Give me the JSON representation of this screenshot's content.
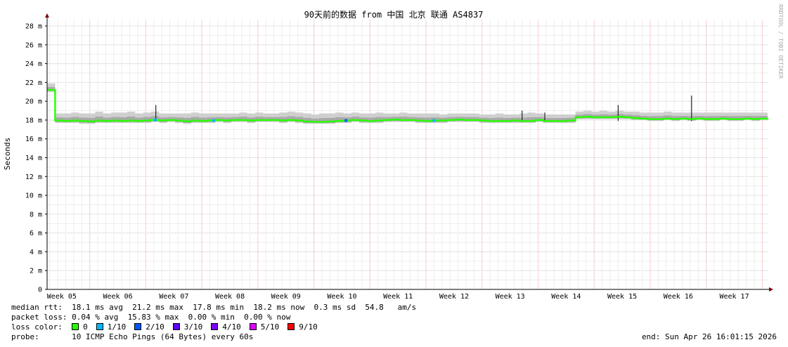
{
  "chart_data": {
    "type": "line",
    "title": "90天前的数据 from 中国 北京 联通 AS4837",
    "ylabel": "Seconds",
    "watermark": "RRDTOOL / TOBI OETIKER",
    "ylim": [
      0,
      0.028
    ],
    "yticks": [
      "0",
      "2 m",
      "4 m",
      "6 m",
      "8 m",
      "10 m",
      "12 m",
      "14 m",
      "16 m",
      "18 m",
      "20 m",
      "22 m",
      "24 m",
      "26 m",
      "28 m"
    ],
    "xticks": [
      "Week 05",
      "Week 06",
      "Week 07",
      "Week 08",
      "Week 09",
      "Week 10",
      "Week 11",
      "Week 12",
      "Week 13",
      "Week 14",
      "Week 15",
      "Week 16",
      "Week 17"
    ],
    "grid": true,
    "x_start": "2026-01-26T16:01:15",
    "x_end": "2026-04-26T16:01:15",
    "x_interval": "1 day",
    "median_ms": [
      21.2,
      17.95,
      17.9,
      17.95,
      17.9,
      17.85,
      17.95,
      17.9,
      17.95,
      17.9,
      17.95,
      17.9,
      17.95,
      18.0,
      17.95,
      18.0,
      17.95,
      17.85,
      17.95,
      17.9,
      17.95,
      18.0,
      17.95,
      18.0,
      18.0,
      17.95,
      18.0,
      18.0,
      18.0,
      17.95,
      18.0,
      17.95,
      17.85,
      17.8,
      17.8,
      17.85,
      17.9,
      17.95,
      18.0,
      17.95,
      17.9,
      17.95,
      18.0,
      18.05,
      18.0,
      18.0,
      17.95,
      17.9,
      17.95,
      17.95,
      18.0,
      18.05,
      18.0,
      18.0,
      17.95,
      17.9,
      17.9,
      17.9,
      17.95,
      17.9,
      17.9,
      18.0,
      17.9,
      17.9,
      17.9,
      17.95,
      18.3,
      18.35,
      18.3,
      18.3,
      18.3,
      18.35,
      18.3,
      18.2,
      18.15,
      18.1,
      18.1,
      18.15,
      18.1,
      18.15,
      18.1,
      18.15,
      18.1,
      18.1,
      18.15,
      18.1,
      18.1,
      18.15,
      18.1,
      18.15,
      18.2
    ],
    "smoke_upper_ms": [
      21.9,
      18.7,
      18.7,
      18.8,
      18.7,
      18.7,
      18.9,
      18.7,
      18.8,
      18.8,
      18.9,
      18.7,
      18.8,
      18.9,
      18.7,
      18.7,
      18.7,
      18.7,
      18.8,
      18.7,
      18.7,
      18.7,
      18.7,
      18.7,
      18.8,
      18.7,
      18.8,
      18.7,
      18.7,
      18.8,
      18.9,
      18.8,
      18.7,
      18.6,
      18.7,
      18.7,
      18.8,
      18.7,
      18.8,
      18.7,
      18.7,
      18.8,
      18.7,
      18.7,
      18.8,
      18.7,
      18.7,
      18.7,
      18.7,
      18.6,
      18.7,
      18.7,
      18.7,
      18.7,
      18.6,
      18.6,
      18.7,
      18.6,
      18.6,
      18.7,
      18.8,
      18.7,
      18.6,
      18.6,
      18.6,
      18.6,
      18.9,
      19.0,
      18.9,
      19.0,
      18.9,
      19.0,
      18.9,
      18.9,
      18.8,
      18.8,
      18.8,
      18.9,
      18.8,
      18.8,
      18.8,
      18.8,
      18.8,
      18.8,
      18.8,
      18.8,
      18.8,
      18.8,
      18.8,
      18.8,
      18.8
    ],
    "smoke_lower_ms": [
      21.0,
      17.7,
      17.7,
      17.7,
      17.6,
      17.6,
      17.7,
      17.7,
      17.7,
      17.7,
      17.7,
      17.7,
      17.7,
      17.8,
      17.7,
      17.8,
      17.7,
      17.6,
      17.7,
      17.7,
      17.7,
      17.8,
      17.7,
      17.8,
      17.8,
      17.7,
      17.8,
      17.8,
      17.8,
      17.7,
      17.8,
      17.7,
      17.6,
      17.6,
      17.6,
      17.6,
      17.7,
      17.7,
      17.8,
      17.7,
      17.7,
      17.7,
      17.8,
      17.8,
      17.8,
      17.8,
      17.7,
      17.7,
      17.7,
      17.7,
      17.8,
      17.8,
      17.8,
      17.8,
      17.7,
      17.7,
      17.7,
      17.7,
      17.7,
      17.7,
      17.7,
      17.8,
      17.7,
      17.7,
      17.7,
      17.7,
      18.1,
      18.1,
      18.1,
      18.1,
      18.1,
      18.1,
      18.1,
      18.0,
      18.0,
      17.9,
      17.9,
      18.0,
      17.9,
      18.0,
      17.9,
      18.0,
      17.9,
      17.9,
      18.0,
      17.9,
      17.9,
      18.0,
      17.9,
      18.0,
      18.0
    ],
    "spikes": [
      {
        "time": "2026-02-09T06:00:00",
        "max_ms": 19.6
      },
      {
        "time": "2026-03-27T00:00:00",
        "max_ms": 19.0
      },
      {
        "time": "2026-03-29T20:00:00",
        "max_ms": 18.8
      },
      {
        "time": "2026-04-08T00:00:00",
        "max_ms": 19.6
      },
      {
        "time": "2026-04-17T04:00:00",
        "max_ms": 20.6
      }
    ],
    "loss_points": [
      {
        "time": "2026-02-09T04:00:00",
        "loss": "1/10"
      },
      {
        "time": "2026-02-16T12:00:00",
        "loss": "1/10"
      },
      {
        "time": "2026-03-05T00:00:00",
        "loss": "2/10"
      },
      {
        "time": "2026-03-16T00:00:00",
        "loss": "1/10"
      }
    ]
  },
  "legend": {
    "median_rtt": "median rtt:  18.1 ms avg  21.2 ms max  17.8 ms min  18.2 ms now  0.3 ms sd  54.8   am/s",
    "packet_loss": "packet loss: 0.04 % avg  15.83 % max  0.00 % min  0.00 % now",
    "loss_color_label": "loss color:  ",
    "loss_colors": [
      {
        "label": "0",
        "color": "#26ff00"
      },
      {
        "label": "1/10",
        "color": "#00b8ff"
      },
      {
        "label": "2/10",
        "color": "#0059ff"
      },
      {
        "label": "3/10",
        "color": "#5e00ff"
      },
      {
        "label": "4/10",
        "color": "#7e00ff"
      },
      {
        "label": "5/10",
        "color": "#dd00ff"
      },
      {
        "label": "9/10",
        "color": "#ff0000"
      }
    ],
    "probe": "probe:       10 ICMP Echo Pings (64 Bytes) every 60s",
    "end": "end: Sun Apr 26 16:01:15 2026"
  }
}
